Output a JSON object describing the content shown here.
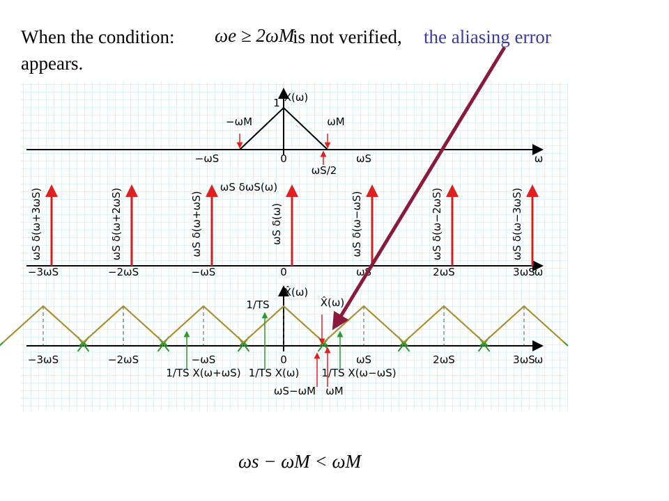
{
  "header": {
    "text1": "When the condition:",
    "condition": "ωe ≥ 2ωM",
    "text2": "is not verified,",
    "highlight": "the aliasing error",
    "text3": "appears."
  },
  "panel1": {
    "labels": [
      "X(ω)",
      "1",
      "−ωM",
      "ωM",
      "−ωS",
      "0",
      "ωS",
      "ωS/2",
      "ω"
    ]
  },
  "panel2": {
    "title": "ωS δωS(ω)",
    "impulses": [
      "ωS δ(ω+3ωS)",
      "ωS δ(ω+2ωS)",
      "ωS δ(ω+ωS)",
      "ωS δ(ω)",
      "ωS δ(ω−ωS)",
      "ωS δ(ω−2ωS)",
      "ωS δ(ω−3ωS)"
    ],
    "axis": [
      "−3ωS",
      "−2ωS",
      "−ωS",
      "0",
      "ωS",
      "2ωS",
      "3ωS",
      "ω"
    ]
  },
  "panel3": {
    "labels": [
      "X̂(ω)",
      "X̂(ω)",
      "1/TS"
    ],
    "axis": [
      "−3ωS",
      "−2ωS",
      "−ωS",
      "0",
      "ωS",
      "2ωS",
      "3ωS",
      "ω"
    ],
    "notes": [
      "1/TS X(ω+ωS)",
      "1/TS X(ω)",
      "1/TS X(ω−ωS)",
      "ωS−ωM",
      "ωM"
    ]
  },
  "footer": {
    "formula": "ωs − ωM < ωM"
  }
}
